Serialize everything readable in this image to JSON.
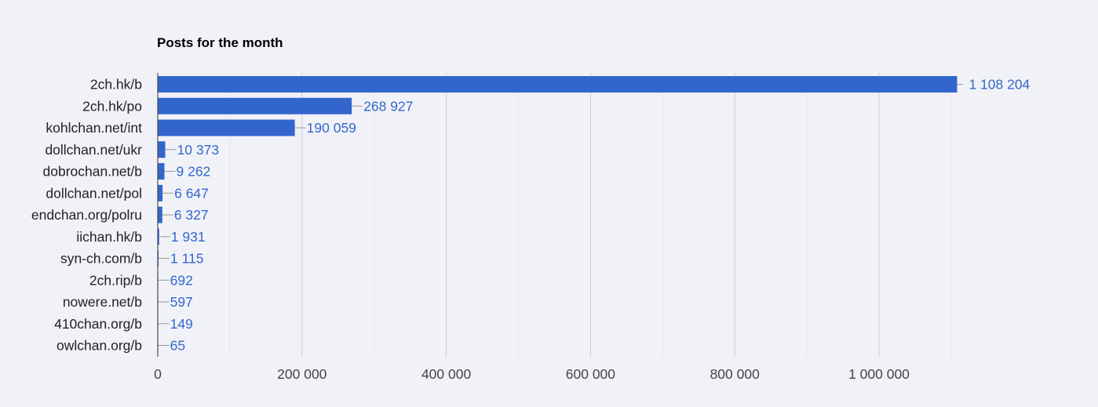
{
  "chart_data": {
    "type": "bar",
    "orientation": "horizontal",
    "title": "Posts for the month",
    "xlabel": "",
    "ylabel": "",
    "categories": [
      "2ch.hk/b",
      "2ch.hk/po",
      "kohlchan.net/int",
      "dollchan.net/ukr",
      "dobrochan.net/b",
      "dollchan.net/pol",
      "endchan.org/polru",
      "iichan.hk/b",
      "syn-ch.com/b",
      "2ch.rip/b",
      "nowere.net/b",
      "410chan.org/b",
      "owlchan.org/b"
    ],
    "values": [
      1108204,
      268927,
      190059,
      10373,
      9262,
      6647,
      6327,
      1931,
      1115,
      692,
      597,
      149,
      65
    ],
    "value_labels": [
      "1 108 204",
      "268 927",
      "190 059",
      "10 373",
      "9 262",
      "6 647",
      "6 327",
      "1 931",
      "1 115",
      "692",
      "597",
      "149",
      "65"
    ],
    "xlim": [
      0,
      1200000
    ],
    "xticks": [
      0,
      200000,
      400000,
      600000,
      800000,
      1000000
    ],
    "xtick_labels": [
      "0",
      "200 000",
      "400 000",
      "600 000",
      "800 000",
      "1 000 000"
    ],
    "grid": true,
    "colors": {
      "bar": "#3366cc",
      "label": "#3366cc",
      "leader": "#999999",
      "grid_major": "#cccccc",
      "grid_minor": "#e4e5ea",
      "axis": "#333333"
    }
  }
}
